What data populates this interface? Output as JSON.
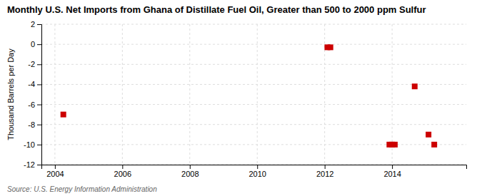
{
  "chart_data": {
    "type": "scatter",
    "title": "Monthly U.S. Net Imports from Ghana of Distillate Fuel Oil, Greater than 500 to 2000 ppm Sulfur",
    "ylabel": "Thousand Barrels per Day",
    "source": "Source: U.S. Energy Information Administration",
    "x": [
      2004.25,
      2012.08,
      2012.17,
      2013.92,
      2014.0,
      2014.08,
      2014.67,
      2015.08,
      2015.25
    ],
    "values": [
      -7.0,
      -0.3,
      -0.3,
      -10.0,
      -10.0,
      -10.0,
      -4.2,
      -9.0,
      -10.0
    ],
    "color": "#cc0000",
    "marker": "square",
    "xlim": [
      2003.6,
      2016.2
    ],
    "ylim": [
      -12,
      2
    ],
    "xticks": [
      2004,
      2006,
      2008,
      2010,
      2012,
      2014
    ],
    "yticks": [
      2,
      0,
      -2,
      -4,
      -6,
      -8,
      -10,
      -12
    ],
    "grid": true
  }
}
